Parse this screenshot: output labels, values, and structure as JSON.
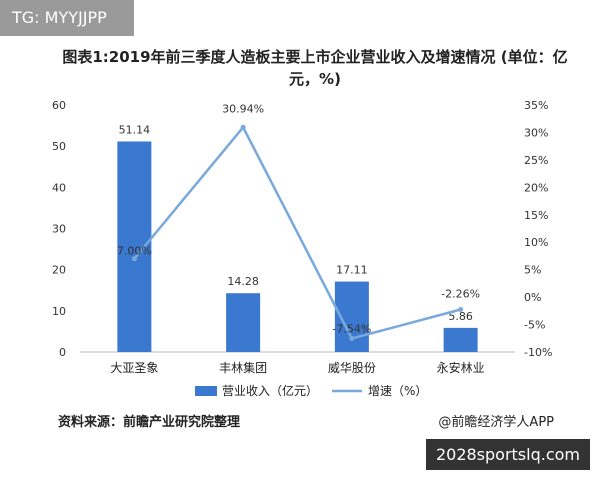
{
  "tag": "TG: MYYJJPP",
  "title": "图表1:2019年前三季度人造板主要上市企业营业收入及增速情况 (单位：亿元，%)",
  "source": "资料来源：前瞻产业研究院整理",
  "brand": "@前瞻经济学人APP",
  "badge": "2028sportslq.com",
  "colors": {
    "bar": "#3b78d0",
    "line": "#79a8dc"
  },
  "chart_data": {
    "type": "bar",
    "categories": [
      "大亚圣象",
      "丰林集团",
      "威华股份",
      "永安林业"
    ],
    "series": [
      {
        "name": "营业收入（亿元）",
        "type": "bar",
        "axis": "left",
        "values": [
          51.14,
          14.28,
          17.11,
          5.86
        ],
        "labels": [
          "51.14",
          "14.28",
          "17.11",
          "5.86"
        ]
      },
      {
        "name": "增速（%）",
        "type": "line",
        "axis": "right",
        "values": [
          7.0,
          30.94,
          -7.54,
          -2.26
        ],
        "labels": [
          "7.00%",
          "30.94%",
          "-7.54%",
          "-2.26%"
        ]
      }
    ],
    "y_left": {
      "min": 0,
      "max": 60,
      "ticks": [
        "0",
        "10",
        "20",
        "30",
        "40",
        "50",
        "60"
      ]
    },
    "y_right": {
      "min": -10,
      "max": 35,
      "ticks": [
        "-10%",
        "-5%",
        "0%",
        "5%",
        "10%",
        "15%",
        "20%",
        "25%",
        "30%",
        "35%"
      ]
    },
    "legend_position": "bottom"
  }
}
